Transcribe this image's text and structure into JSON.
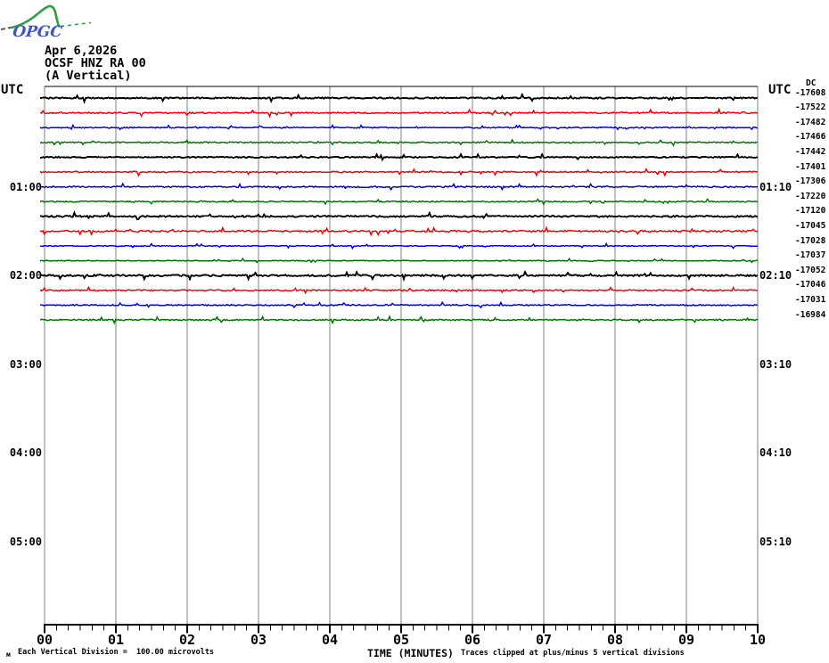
{
  "logo": {
    "text": "OPGC",
    "text_color": "#3a56c8",
    "mountain_color": "#2f9e41",
    "dash_color": "#555555"
  },
  "header": {
    "date": "Apr 6,2026",
    "station": "OCSF HNZ RA 00",
    "component": "(A Vertical)"
  },
  "footer": {
    "scale_marker": "м",
    "scale_note": "Each Vertical Division =  100.00 microvolts",
    "clip_note": "Traces clipped at plus/minus 5 vertical divisions"
  },
  "chart_data": {
    "type": "line",
    "subtype": "helicorder-seismogram",
    "title": "OCSF HNZ RA 00 (A Vertical)",
    "x_title": "TIME (MINUTES)",
    "left_axis_title": "UTC",
    "right_axis_title": "UTC",
    "dc_column_label": "DC",
    "x_major_ticks": [
      "00",
      "01",
      "02",
      "03",
      "04",
      "05",
      "06",
      "07",
      "08",
      "09",
      "10"
    ],
    "minor_ticks_per_major": 6,
    "minutes_per_line": 10,
    "x_range_minutes": [
      0,
      10
    ],
    "left_hour_labels": [
      {
        "label": "01:00",
        "row": 6
      },
      {
        "label": "02:00",
        "row": 12
      },
      {
        "label": "03:00",
        "row": 18
      },
      {
        "label": "04:00",
        "row": 24
      },
      {
        "label": "05:00",
        "row": 30
      }
    ],
    "right_hour_labels": [
      {
        "label": "01:10",
        "row": 6
      },
      {
        "label": "02:10",
        "row": 12
      },
      {
        "label": "03:10",
        "row": 18
      },
      {
        "label": "04:10",
        "row": 24
      },
      {
        "label": "05:10",
        "row": 30
      }
    ],
    "traces": [
      {
        "start": "00:00",
        "color": "black",
        "dc": -17608,
        "noise": 1.3
      },
      {
        "start": "00:10",
        "color": "red",
        "dc": -17522,
        "noise": 1.3
      },
      {
        "start": "00:20",
        "color": "blue",
        "dc": -17482,
        "noise": 0.9
      },
      {
        "start": "00:30",
        "color": "green",
        "dc": -17466,
        "noise": 1.1
      },
      {
        "start": "00:40",
        "color": "black",
        "dc": -17442,
        "noise": 1.2
      },
      {
        "start": "00:50",
        "color": "red",
        "dc": -17401,
        "noise": 1.3
      },
      {
        "start": "01:00",
        "color": "blue",
        "dc": -17306,
        "noise": 1.3
      },
      {
        "start": "01:10",
        "color": "green",
        "dc": -17220,
        "noise": 1.0
      },
      {
        "start": "01:20",
        "color": "black",
        "dc": -17120,
        "noise": 1.4
      },
      {
        "start": "01:30",
        "color": "red",
        "dc": -17045,
        "noise": 1.5
      },
      {
        "start": "01:40",
        "color": "blue",
        "dc": -17028,
        "noise": 0.9
      },
      {
        "start": "01:50",
        "color": "green",
        "dc": -17037,
        "noise": 0.8
      },
      {
        "start": "02:00",
        "color": "black",
        "dc": -17052,
        "noise": 1.6
      },
      {
        "start": "02:10",
        "color": "red",
        "dc": -17046,
        "noise": 1.2
      },
      {
        "start": "02:20",
        "color": "blue",
        "dc": -17031,
        "noise": 1.2
      },
      {
        "start": "02:30",
        "color": "green",
        "dc": -16984,
        "noise": 1.3
      }
    ],
    "colors": {
      "black": "#000000",
      "red": "#ff0000",
      "blue": "#0000ff",
      "green": "#007700",
      "grid": "#808080",
      "axis": "#000000"
    },
    "notes": {
      "vertical_division": "100.00 microvolts",
      "clipping": "plus/minus 5 vertical divisions"
    }
  }
}
